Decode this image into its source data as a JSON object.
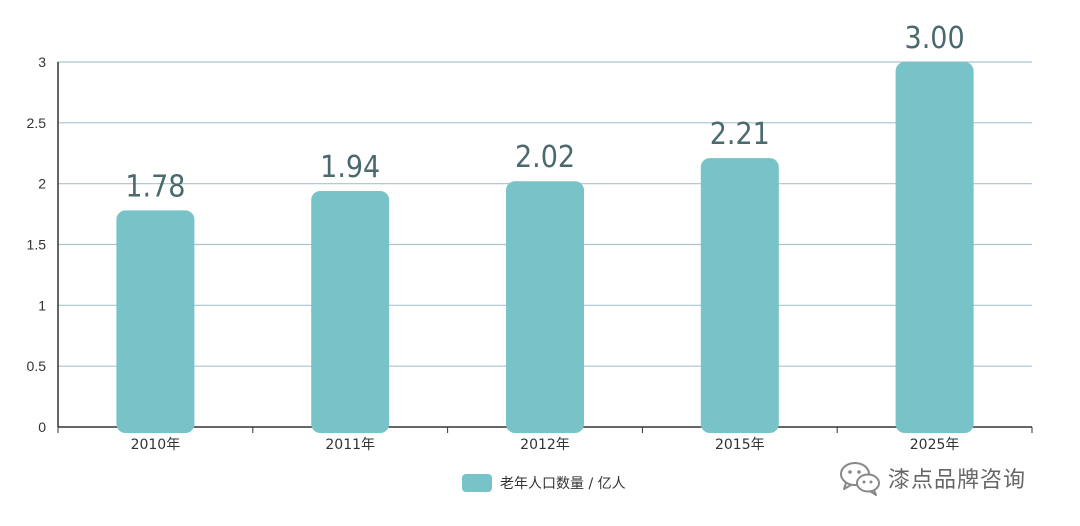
{
  "chart_data": {
    "type": "bar",
    "categories": [
      "2010年",
      "2011年",
      "2012年",
      "2015年",
      "2025年"
    ],
    "values": [
      1.78,
      1.94,
      2.02,
      2.21,
      3.0
    ],
    "value_labels": [
      "1.78",
      "1.94",
      "2.02",
      "2.21",
      "3.00"
    ],
    "series": [
      {
        "name": "老年人口数量 / 亿人",
        "values": [
          1.78,
          1.94,
          2.02,
          2.21,
          3.0
        ]
      }
    ],
    "y_ticks": [
      "0",
      "0.5",
      "1",
      "1.5",
      "2",
      "2.5",
      "3"
    ],
    "y_tick_values": [
      0,
      0.5,
      1,
      1.5,
      2,
      2.5,
      3
    ],
    "ylim": [
      0,
      3
    ],
    "grid": true,
    "legend_position": "bottom",
    "bar_color": "#78c3c7",
    "grid_color": "#a9c3cf",
    "value_label_color": "#4a6a6e"
  },
  "legend": {
    "label": "老年人口数量 / 亿人",
    "color": "#78c3c7"
  },
  "watermark": {
    "text": "漆点品牌咨询",
    "icon": "wechat-icon"
  }
}
